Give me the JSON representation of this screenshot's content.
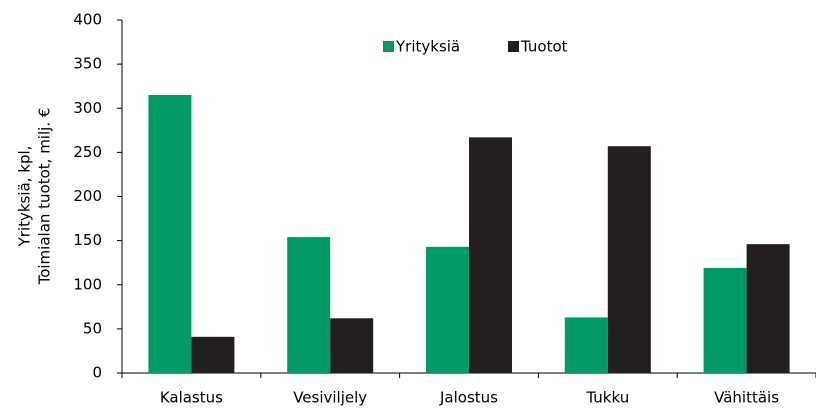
{
  "chart_data": {
    "type": "bar",
    "ylabel": [
      "Yrityksiä, kpl,",
      "Toimialan tuotot, milj. €"
    ],
    "categories": [
      "Kalastus",
      "Vesiviljely",
      "Jalostus",
      "Tukku",
      "Vähittäis"
    ],
    "series": [
      {
        "name": "Yrityksiä",
        "color": "#009a66",
        "values": [
          315,
          154,
          143,
          63,
          119
        ]
      },
      {
        "name": "Tuotot",
        "color": "#231f20",
        "values": [
          41,
          62,
          267,
          257,
          146
        ]
      }
    ],
    "ylim": [
      0,
      400
    ],
    "yticks": [
      0,
      50,
      100,
      150,
      200,
      250,
      300,
      350,
      400
    ],
    "grid": false,
    "legend": "top"
  }
}
